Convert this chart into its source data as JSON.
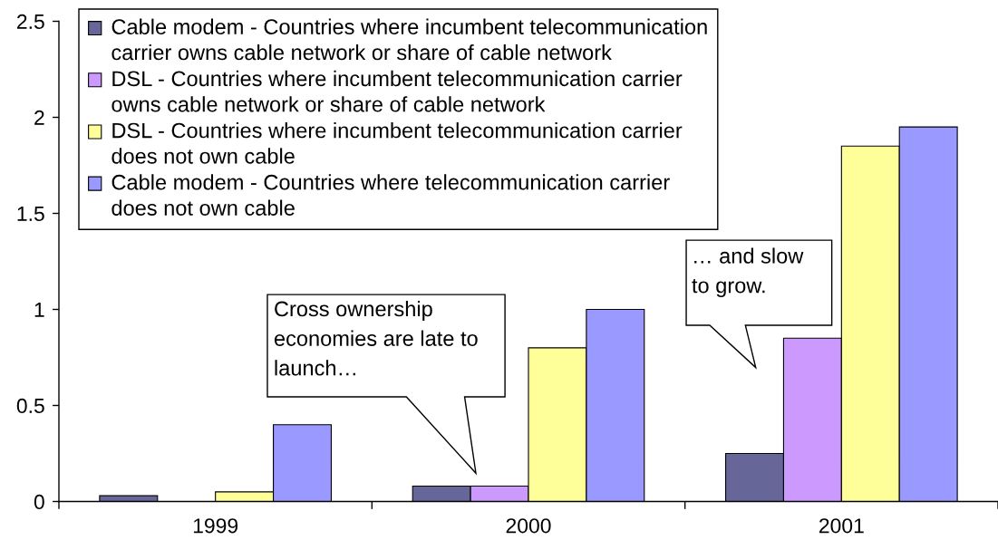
{
  "chart_data": {
    "type": "bar",
    "categories": [
      "1999",
      "2000",
      "2001"
    ],
    "series": [
      {
        "name": "Cable modem - Countries where incumbent telecommunication\ncarrier owns cable network or share of cable network",
        "color": "#666699",
        "values": [
          0.03,
          0.08,
          0.25
        ]
      },
      {
        "name": "DSL - Countries where incumbent telecommunication carrier\nowns cable network or share of cable network",
        "color": "#cc99ff",
        "values": [
          null,
          0.08,
          0.85
        ]
      },
      {
        "name": "DSL - Countries where incumbent telecommunication carrier\ndoes not own cable",
        "color": "#ffff99",
        "values": [
          0.05,
          0.8,
          1.85
        ]
      },
      {
        "name": "Cable modem - Countries where telecommunication carrier\ndoes not own cable",
        "color": "#9999ff",
        "values": [
          0.4,
          1.0,
          1.95
        ]
      }
    ],
    "ylim": [
      0,
      2.5
    ],
    "yticks": [
      0,
      0.5,
      1,
      1.5,
      2,
      2.5
    ],
    "grid": false,
    "legend": "top left",
    "annotations": [
      "Cross ownership\neconomies are late to\nlaunch…",
      "… and slow\nto grow."
    ]
  }
}
